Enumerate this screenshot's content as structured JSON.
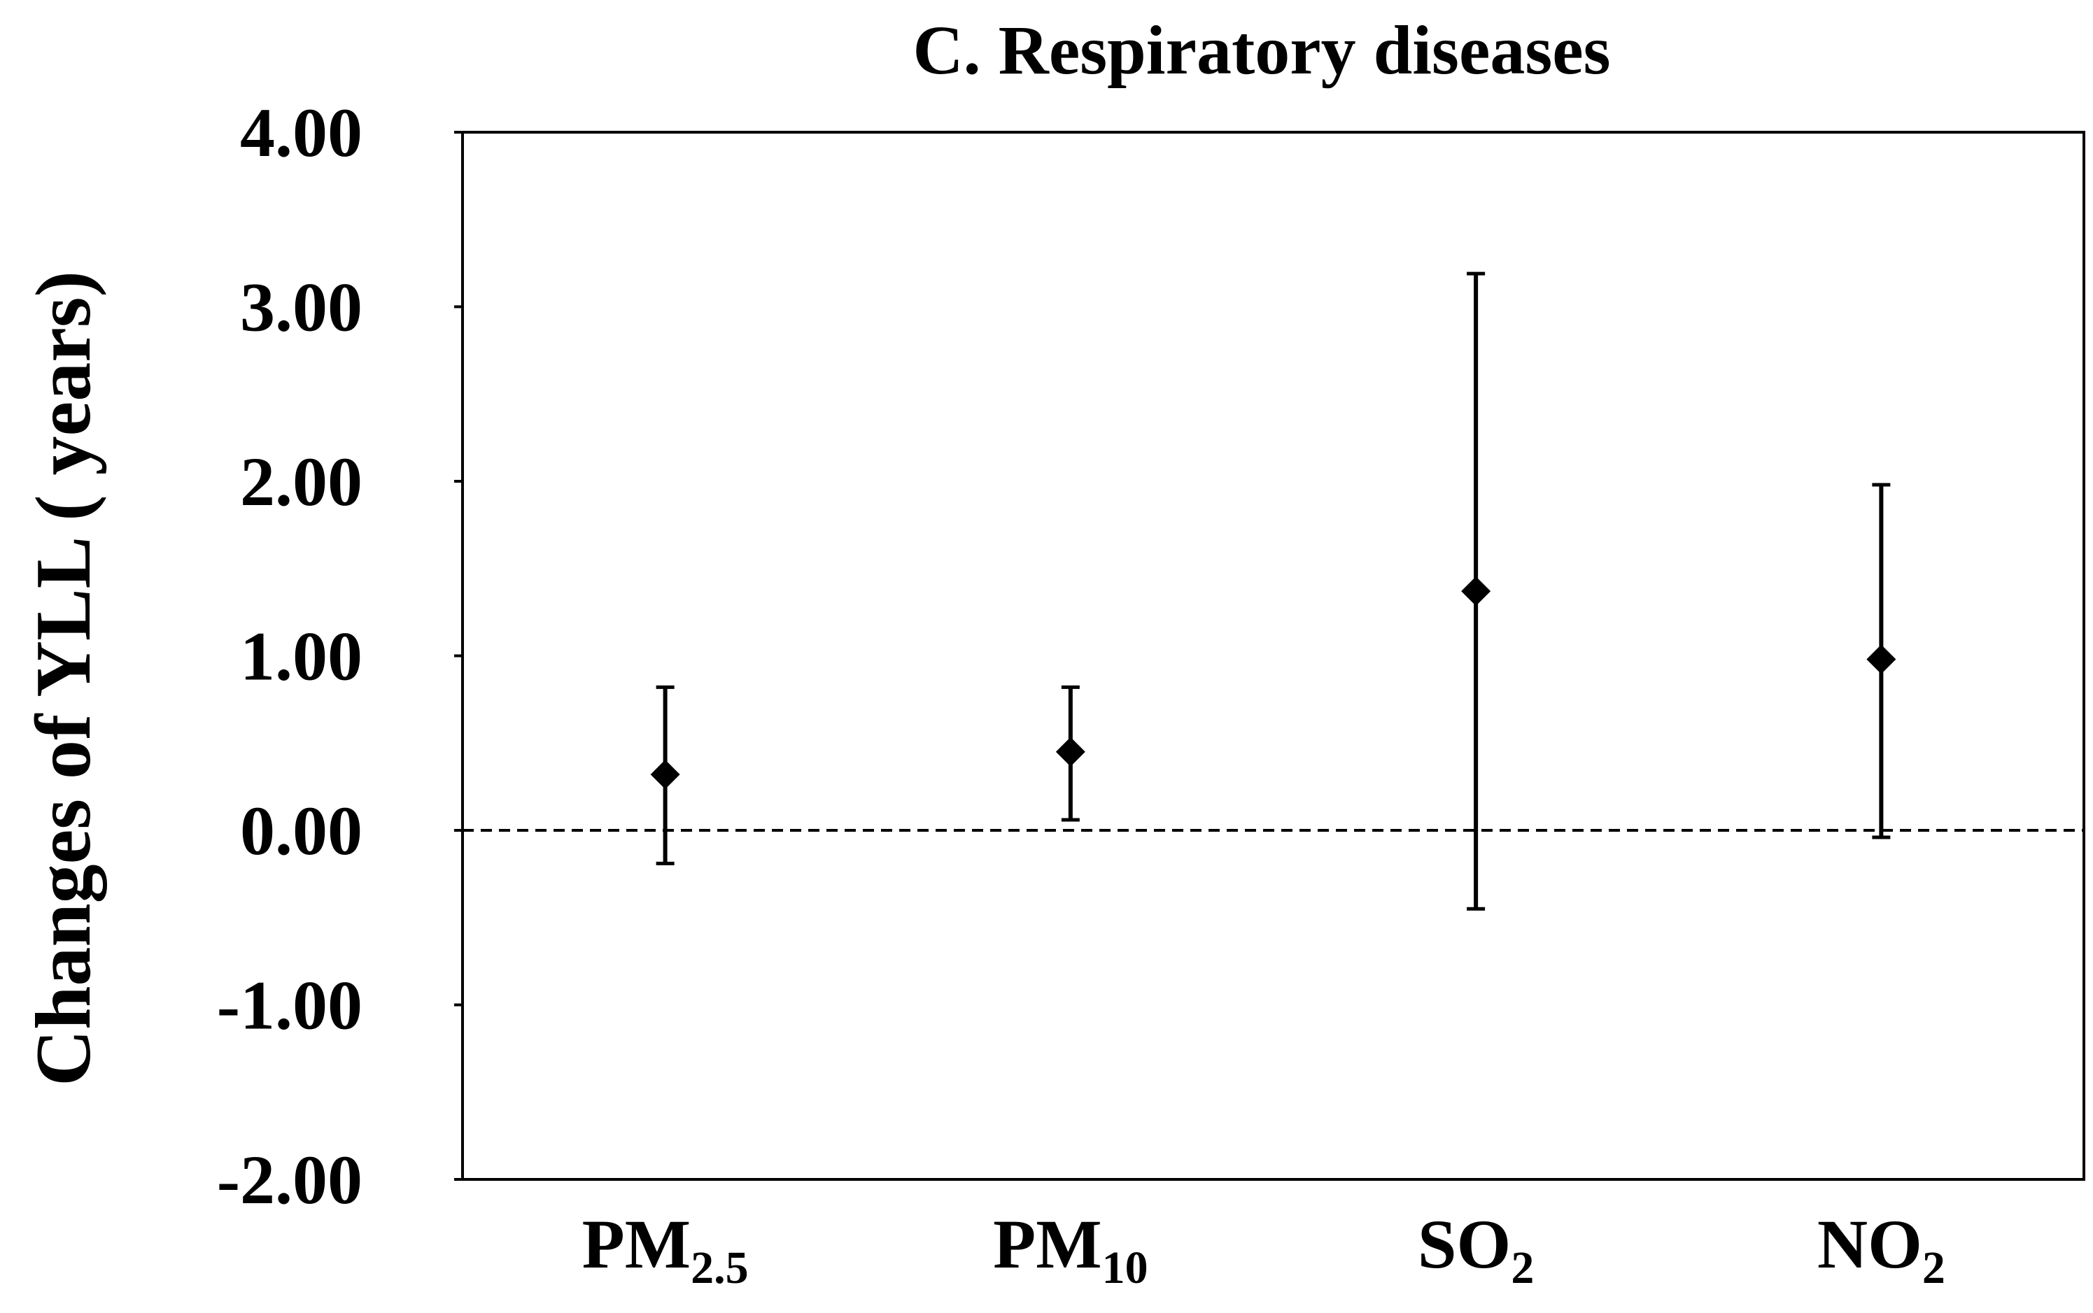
{
  "chart_data": {
    "type": "scatter",
    "title": "C. Respiratory diseases",
    "xlabel": "",
    "ylabel": "Changes of YLL ( years)",
    "ylim": [
      -2.0,
      4.0
    ],
    "yticks": [
      4.0,
      3.0,
      2.0,
      1.0,
      0.0,
      -1.0,
      -2.0
    ],
    "ytick_labels": [
      "4.00",
      "3.00",
      "2.00",
      "1.00",
      "0.00",
      "-1.00",
      "-2.00"
    ],
    "reference_line": {
      "y": 0.0,
      "style": "dashed"
    },
    "grid": false,
    "marker": "diamond",
    "categories": [
      {
        "base": "PM",
        "sub": "2.5"
      },
      {
        "base": "PM",
        "sub": "10"
      },
      {
        "base": "SO",
        "sub": "2"
      },
      {
        "base": "NO",
        "sub": "2"
      }
    ],
    "values": [
      0.32,
      0.45,
      1.37,
      0.98
    ],
    "lower": [
      -0.19,
      0.06,
      -0.45,
      -0.04
    ],
    "upper": [
      0.82,
      0.82,
      3.19,
      1.98
    ]
  },
  "colors": {
    "ink": "#000000",
    "background": "#ffffff"
  }
}
